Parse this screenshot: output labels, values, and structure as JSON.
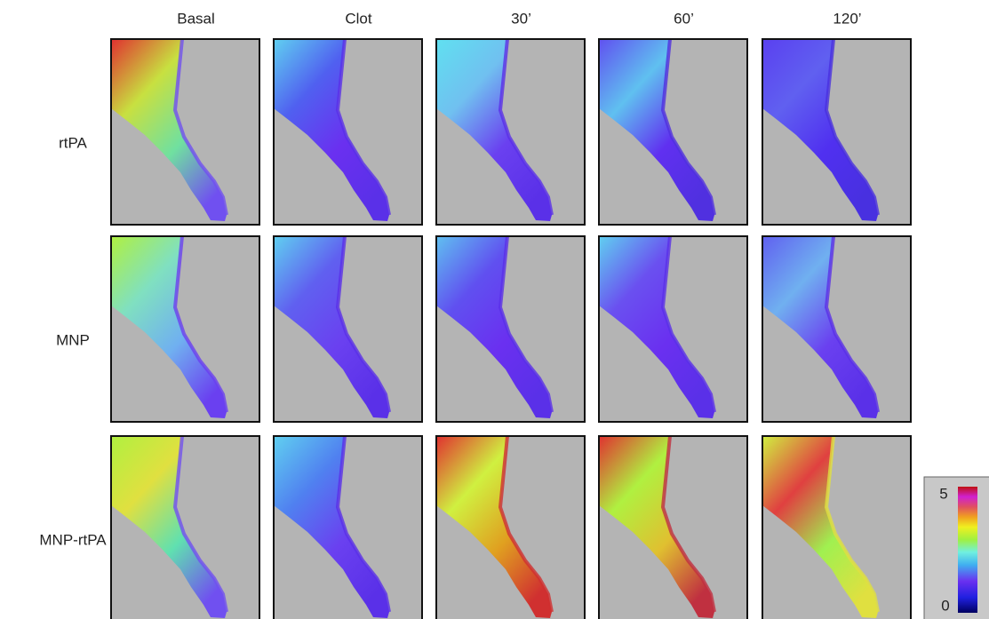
{
  "columns": [
    "Basal",
    "Clot",
    "30’",
    "60’",
    "120’"
  ],
  "rows": [
    "rtPA",
    "MNP",
    "MNP-rtPA"
  ],
  "colorbar": {
    "max": 5,
    "min": 0
  }
}
